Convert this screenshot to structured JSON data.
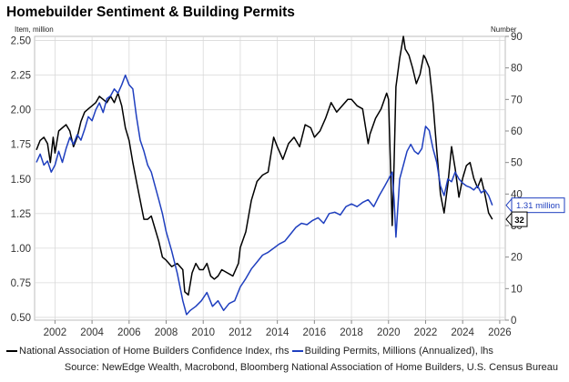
{
  "colors": {
    "builders": "#000000",
    "permits": "#1f3fbf",
    "grid": "#d9d9d9",
    "callout_border": "#1f3fbf"
  },
  "chart_data": {
    "type": "line",
    "title": "Homebuilder Sentiment & Building Permits",
    "left_unit": "Item, million",
    "right_unit": "Number",
    "x_ticks": [
      "2002",
      "2004",
      "2006",
      "2008",
      "2010",
      "2012",
      "2014",
      "2016",
      "2018",
      "2020",
      "2022",
      "2024",
      "2026"
    ],
    "y_left_ticks": [
      "0.50",
      "0.75",
      "1.00",
      "1.25",
      "1.50",
      "1.75",
      "2.00",
      "2.25",
      "2.50"
    ],
    "y_right_ticks": [
      "0",
      "10",
      "20",
      "30",
      "40",
      "50",
      "60",
      "70",
      "80",
      "90"
    ],
    "xlim": [
      2000.9,
      2026.3
    ],
    "ylim_left": [
      0.48,
      2.53
    ],
    "ylim_right": [
      0,
      90
    ],
    "grid": true,
    "series": [
      {
        "name": "National Association of Home Builders Confidence Index, rhs",
        "axis": "right",
        "color": "#000000",
        "x": [
          2001.0,
          2001.2,
          2001.4,
          2001.6,
          2001.75,
          2001.9,
          2002.0,
          2002.2,
          2002.4,
          2002.6,
          2002.8,
          2003.0,
          2003.2,
          2003.4,
          2003.6,
          2003.8,
          2004.0,
          2004.2,
          2004.4,
          2004.6,
          2004.8,
          2005.0,
          2005.2,
          2005.4,
          2005.6,
          2005.8,
          2006.0,
          2006.2,
          2006.4,
          2006.6,
          2006.8,
          2007.0,
          2007.2,
          2007.4,
          2007.6,
          2007.8,
          2008.0,
          2008.3,
          2008.6,
          2008.9,
          2009.0,
          2009.2,
          2009.4,
          2009.6,
          2009.8,
          2010.0,
          2010.2,
          2010.4,
          2010.6,
          2010.8,
          2011.0,
          2011.3,
          2011.6,
          2011.9,
          2012.0,
          2012.3,
          2012.6,
          2012.9,
          2013.2,
          2013.5,
          2013.8,
          2014.0,
          2014.3,
          2014.6,
          2014.9,
          2015.2,
          2015.5,
          2015.8,
          2016.0,
          2016.3,
          2016.6,
          2016.9,
          2017.2,
          2017.5,
          2017.8,
          2018.0,
          2018.3,
          2018.6,
          2018.9,
          2019.0,
          2019.3,
          2019.6,
          2019.9,
          2020.0,
          2020.2,
          2020.3,
          2020.4,
          2020.6,
          2020.8,
          2020.9,
          2021.1,
          2021.3,
          2021.5,
          2021.7,
          2021.9,
          2022.0,
          2022.2,
          2022.4,
          2022.6,
          2022.8,
          2023.0,
          2023.2,
          2023.4,
          2023.6,
          2023.8,
          2024.0,
          2024.2,
          2024.4,
          2024.6,
          2024.8,
          2025.0,
          2025.2,
          2025.4,
          2025.6
        ],
        "values": [
          54,
          57,
          58,
          56,
          50,
          58,
          53,
          60,
          61,
          62,
          60,
          55,
          58,
          63,
          66,
          67,
          68,
          69,
          71,
          70,
          69,
          71,
          69,
          72,
          68,
          61,
          57,
          50,
          44,
          38,
          32,
          32,
          33,
          29,
          25,
          20,
          19,
          17,
          18,
          16,
          9,
          8,
          15,
          18,
          16,
          16,
          18,
          14,
          13,
          14,
          16,
          15,
          14,
          18,
          23,
          28,
          38,
          44,
          46,
          47,
          58,
          55,
          51,
          56,
          58,
          55,
          62,
          61,
          58,
          60,
          64,
          69,
          66,
          68,
          70,
          70,
          68,
          67,
          56,
          59,
          64,
          67,
          72,
          70,
          30,
          50,
          74,
          83,
          90,
          86,
          84,
          80,
          75,
          78,
          84,
          83,
          80,
          69,
          54,
          40,
          34,
          43,
          55,
          48,
          39,
          45,
          49,
          50,
          45,
          42,
          45,
          40,
          34,
          32
        ]
      },
      {
        "name": "Building Permits, Millions (Annualized), lhs",
        "axis": "left",
        "color": "#1f3fbf",
        "x": [
          2001.0,
          2001.2,
          2001.4,
          2001.6,
          2001.8,
          2002.0,
          2002.2,
          2002.4,
          2002.6,
          2002.8,
          2003.0,
          2003.2,
          2003.4,
          2003.6,
          2003.8,
          2004.0,
          2004.2,
          2004.4,
          2004.6,
          2004.8,
          2005.0,
          2005.2,
          2005.4,
          2005.6,
          2005.8,
          2006.0,
          2006.2,
          2006.4,
          2006.6,
          2006.8,
          2007.0,
          2007.2,
          2007.4,
          2007.6,
          2007.8,
          2008.0,
          2008.3,
          2008.6,
          2008.9,
          2009.1,
          2009.3,
          2009.6,
          2009.9,
          2010.2,
          2010.5,
          2010.8,
          2011.1,
          2011.4,
          2011.7,
          2012.0,
          2012.3,
          2012.6,
          2012.9,
          2013.2,
          2013.5,
          2013.8,
          2014.1,
          2014.4,
          2014.7,
          2015.0,
          2015.3,
          2015.6,
          2015.9,
          2016.2,
          2016.5,
          2016.8,
          2017.1,
          2017.4,
          2017.7,
          2018.0,
          2018.3,
          2018.6,
          2018.9,
          2019.2,
          2019.5,
          2019.8,
          2020.0,
          2020.2,
          2020.3,
          2020.4,
          2020.6,
          2020.8,
          2021.0,
          2021.2,
          2021.4,
          2021.6,
          2021.8,
          2022.0,
          2022.2,
          2022.4,
          2022.6,
          2022.8,
          2023.0,
          2023.2,
          2023.4,
          2023.6,
          2023.8,
          2024.0,
          2024.2,
          2024.4,
          2024.6,
          2024.8,
          2025.0,
          2025.2,
          2025.4,
          2025.6
        ],
        "values": [
          1.62,
          1.68,
          1.6,
          1.63,
          1.55,
          1.6,
          1.7,
          1.62,
          1.72,
          1.8,
          1.75,
          1.82,
          1.78,
          1.86,
          1.95,
          1.92,
          2.0,
          2.05,
          1.98,
          2.08,
          2.1,
          2.15,
          2.12,
          2.18,
          2.25,
          2.18,
          2.15,
          1.95,
          1.78,
          1.7,
          1.6,
          1.55,
          1.45,
          1.35,
          1.25,
          1.12,
          0.98,
          0.82,
          0.62,
          0.52,
          0.55,
          0.58,
          0.62,
          0.68,
          0.58,
          0.62,
          0.55,
          0.6,
          0.62,
          0.72,
          0.78,
          0.85,
          0.9,
          0.95,
          0.97,
          1.0,
          1.03,
          1.05,
          1.1,
          1.15,
          1.18,
          1.17,
          1.2,
          1.22,
          1.18,
          1.25,
          1.26,
          1.24,
          1.3,
          1.32,
          1.3,
          1.33,
          1.35,
          1.3,
          1.38,
          1.45,
          1.5,
          1.55,
          1.35,
          1.08,
          1.5,
          1.6,
          1.7,
          1.75,
          1.7,
          1.68,
          1.72,
          1.88,
          1.85,
          1.72,
          1.62,
          1.45,
          1.38,
          1.5,
          1.48,
          1.55,
          1.5,
          1.47,
          1.45,
          1.44,
          1.42,
          1.45,
          1.4,
          1.42,
          1.38,
          1.31
        ]
      }
    ],
    "callouts": [
      {
        "label": "1.31 million",
        "axis": "left",
        "value": 1.31
      },
      {
        "label": "32",
        "axis": "right",
        "value": 32
      }
    ],
    "legend": [
      {
        "label": "National Association of Home Builders Confidence Index, rhs",
        "color": "#000000"
      },
      {
        "label": "Building Permits, Millions (Annualized), lhs",
        "color": "#1f3fbf"
      }
    ],
    "source": "Source: NewEdge Wealth, Macrobond, Bloomberg National Association of Home Builders, U.S. Census Bureau"
  }
}
